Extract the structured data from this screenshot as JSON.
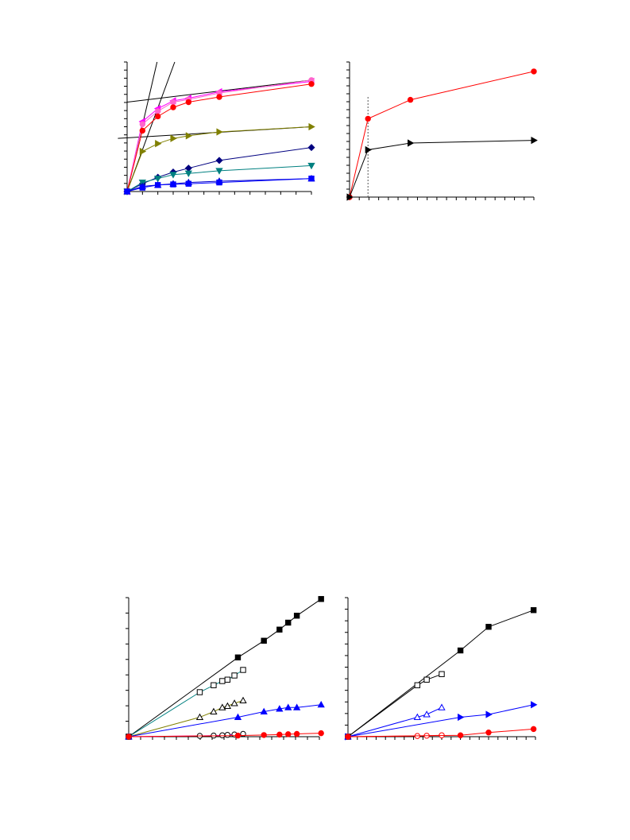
{
  "chart_data": [
    {
      "id": "top-left",
      "type": "line",
      "xlim": [
        0,
        12
      ],
      "ylim": [
        0,
        1
      ],
      "grid": false,
      "title": "",
      "xlabel": "",
      "ylabel": "",
      "series": [
        {
          "color": "#ff00ff",
          "marker": "triangle-left",
          "x": [
            0,
            1,
            2,
            3,
            4,
            6,
            12
          ],
          "y": [
            0,
            0.54,
            0.64,
            0.7,
            0.72,
            0.77,
            0.85
          ]
        },
        {
          "color": "#ff66cc",
          "marker": "circle",
          "x": [
            0,
            1,
            2,
            3,
            4,
            6,
            12
          ],
          "y": [
            0,
            0.52,
            0.62,
            0.69,
            0.71,
            0.76,
            0.86
          ]
        },
        {
          "color": "#ff0000",
          "marker": "circle",
          "x": [
            0,
            1,
            2,
            3,
            4,
            6,
            12
          ],
          "y": [
            0,
            0.47,
            0.58,
            0.65,
            0.69,
            0.73,
            0.83
          ]
        },
        {
          "color": "#808000",
          "marker": "triangle-right",
          "x": [
            0,
            1,
            2,
            3,
            4,
            6,
            12
          ],
          "y": [
            0,
            0.31,
            0.37,
            0.41,
            0.43,
            0.46,
            0.5
          ]
        },
        {
          "color": "#000080",
          "marker": "diamond",
          "x": [
            0,
            1,
            2,
            3,
            4,
            6,
            12
          ],
          "y": [
            0,
            0.06,
            0.11,
            0.15,
            0.18,
            0.24,
            0.34
          ]
        },
        {
          "color": "#008080",
          "marker": "triangle-down",
          "x": [
            0,
            1,
            2,
            3,
            4,
            6,
            12
          ],
          "y": [
            0,
            0.07,
            0.1,
            0.13,
            0.14,
            0.16,
            0.2
          ]
        },
        {
          "color": "#0000cc",
          "marker": "triangle-up",
          "x": [
            0,
            1,
            2,
            3,
            4,
            6,
            12
          ],
          "y": [
            0,
            0.04,
            0.05,
            0.06,
            0.07,
            0.08,
            0.1
          ]
        },
        {
          "color": "#0000ff",
          "marker": "square",
          "x": [
            0,
            1,
            2,
            3,
            4,
            6,
            12
          ],
          "y": [
            0,
            0.03,
            0.05,
            0.055,
            0.06,
            0.07,
            0.1
          ]
        }
      ],
      "reference_lines": [
        {
          "color": "#000000",
          "x": [
            0,
            1.95
          ],
          "y": [
            0,
            1
          ]
        },
        {
          "color": "#000000",
          "x": [
            0,
            3.1
          ],
          "y": [
            0,
            1
          ]
        },
        {
          "color": "#000000",
          "x": [
            0,
            12
          ],
          "y": [
            0.69,
            0.86
          ]
        },
        {
          "color": "#000000",
          "x": [
            -0.6,
            12
          ],
          "y": [
            0.41,
            0.5
          ]
        }
      ]
    },
    {
      "id": "top-right",
      "type": "line",
      "xlim": [
        0,
        10
      ],
      "ylim": [
        0,
        1
      ],
      "grid": false,
      "title": "",
      "xlabel": "",
      "ylabel": "",
      "series": [
        {
          "color": "#ff0000",
          "marker": "circle",
          "x": [
            0,
            1,
            3.3,
            10
          ],
          "y": [
            0,
            0.58,
            0.72,
            0.93
          ]
        },
        {
          "color": "#000000",
          "marker": "triangle-right",
          "x": [
            0,
            1,
            3.3,
            10
          ],
          "y": [
            0,
            0.35,
            0.4,
            0.42
          ]
        }
      ],
      "vertical_lines": [
        {
          "color": "#555555",
          "dash": "2,2",
          "x": 1,
          "y": [
            0,
            0.75
          ]
        }
      ]
    },
    {
      "id": "bottom-left",
      "type": "scatter",
      "xlim": [
        0,
        11
      ],
      "ylim": [
        0,
        1
      ],
      "grid": false,
      "title": "",
      "xlabel": "",
      "ylabel": "",
      "series": [
        {
          "color": "#000000",
          "marker": "square",
          "fill": "filled",
          "line": "#000000",
          "x": [
            0,
            6.3,
            7.8,
            8.7,
            9.2,
            9.7,
            11.1
          ],
          "y": [
            0,
            0.57,
            0.69,
            0.77,
            0.82,
            0.87,
            0.99
          ]
        },
        {
          "color": "#000000",
          "marker": "square",
          "fill": "open",
          "line": "#008080",
          "x": [
            0,
            4.1,
            4.9,
            5.4,
            5.7,
            6.1,
            6.6
          ],
          "y": [
            0,
            0.32,
            0.37,
            0.4,
            0.41,
            0.44,
            0.48
          ]
        },
        {
          "color": "#000000",
          "marker": "triangle-up",
          "fill": "open",
          "line": "#808000",
          "x": [
            0,
            4.1,
            4.9,
            5.4,
            5.7,
            6.1,
            6.6
          ],
          "y": [
            0,
            0.14,
            0.18,
            0.21,
            0.22,
            0.24,
            0.26
          ]
        },
        {
          "color": "#0000ff",
          "marker": "triangle-up",
          "fill": "filled",
          "line": "#0000ff",
          "x": [
            0,
            6.3,
            7.8,
            8.7,
            9.2,
            9.7,
            11.1
          ],
          "y": [
            0,
            0.14,
            0.18,
            0.2,
            0.21,
            0.21,
            0.23
          ]
        },
        {
          "color": "#000000",
          "marker": "circle",
          "fill": "open",
          "line": "#ff00ff",
          "x": [
            0,
            4.1,
            4.9,
            5.4,
            5.7,
            6.1,
            6.6
          ],
          "y": [
            0,
            0.006,
            0.008,
            0.01,
            0.013,
            0.016,
            0.02
          ]
        },
        {
          "color": "#ff0000",
          "marker": "circle",
          "fill": "filled",
          "line": "#ff0000",
          "x": [
            0,
            6.3,
            7.8,
            8.7,
            9.2,
            9.7,
            11.1
          ],
          "y": [
            0,
            0.008,
            0.012,
            0.015,
            0.018,
            0.02,
            0.025
          ]
        }
      ]
    },
    {
      "id": "bottom-right",
      "type": "scatter",
      "xlim": [
        0,
        10
      ],
      "ylim": [
        0,
        1
      ],
      "grid": false,
      "title": "",
      "xlabel": "",
      "ylabel": "",
      "series": [
        {
          "color": "#000000",
          "marker": "square",
          "fill": "filled",
          "line": "#000000",
          "x": [
            0,
            6,
            7.5,
            9.9
          ],
          "y": [
            0,
            0.62,
            0.79,
            0.91
          ]
        },
        {
          "color": "#000000",
          "marker": "square",
          "fill": "open",
          "line": "#000000",
          "x": [
            0,
            3.7,
            4.2,
            5
          ],
          "y": [
            0,
            0.37,
            0.41,
            0.45
          ]
        },
        {
          "color": "#0000ff",
          "marker": "triangle-up",
          "fill": "open",
          "line": "#0000ff",
          "x": [
            0,
            3.7,
            4.2,
            5
          ],
          "y": [
            0,
            0.14,
            0.16,
            0.21
          ]
        },
        {
          "color": "#0000ff",
          "marker": "triangle-right",
          "fill": "filled",
          "line": "#0000ff",
          "x": [
            0,
            6,
            7.5,
            9.9
          ],
          "y": [
            0,
            0.14,
            0.16,
            0.23
          ]
        },
        {
          "color": "#ff0000",
          "marker": "circle",
          "fill": "open",
          "line": "#ff0000",
          "x": [
            0,
            3.7,
            4.2,
            5
          ],
          "y": [
            0,
            0.005,
            0.007,
            0.01
          ]
        },
        {
          "color": "#ff0000",
          "marker": "circle",
          "fill": "filled",
          "line": "#ff0000",
          "x": [
            0,
            6,
            7.5,
            9.9
          ],
          "y": [
            0,
            0.01,
            0.03,
            0.055
          ]
        }
      ]
    }
  ]
}
